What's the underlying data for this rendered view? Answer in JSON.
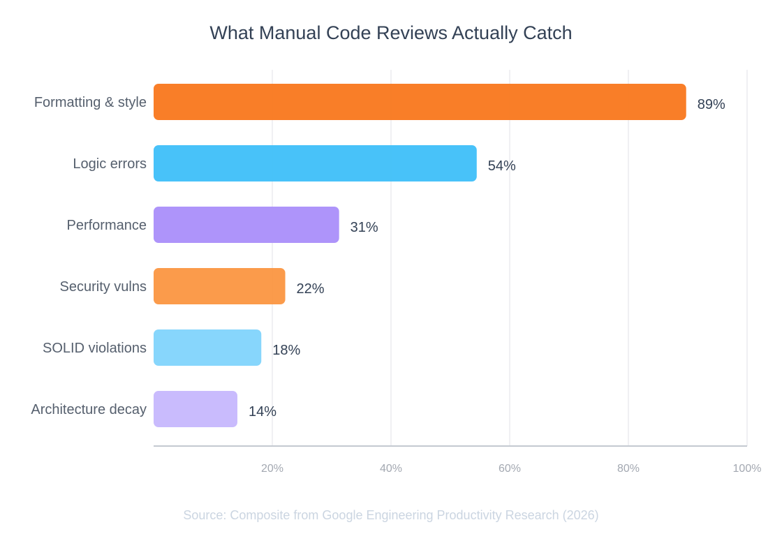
{
  "chart_data": {
    "type": "bar",
    "orientation": "horizontal",
    "title": "What Manual Code Reviews Actually Catch",
    "categories": [
      "Formatting & style",
      "Logic errors",
      "Performance",
      "Security vulns",
      "SOLID violations",
      "Architecture decay"
    ],
    "values": [
      89,
      54,
      31,
      22,
      18,
      14
    ],
    "value_labels": [
      "89%",
      "54%",
      "31%",
      "22%",
      "18%",
      "14%"
    ],
    "colors": [
      "#F97316",
      "#38BDF8",
      "#A78BFA",
      "#FB923C",
      "#7DD3FC",
      "#C4B5FD"
    ],
    "xlim": [
      0,
      100
    ],
    "xticks": [
      20,
      40,
      60,
      80,
      100
    ],
    "xtick_labels": [
      "20%",
      "40%",
      "60%",
      "80%",
      "100%"
    ],
    "xlabel": "",
    "ylabel": "",
    "grid": "vertical",
    "legend": "none",
    "source": "Source: Composite from Google Engineering Productivity Research (2026)"
  }
}
